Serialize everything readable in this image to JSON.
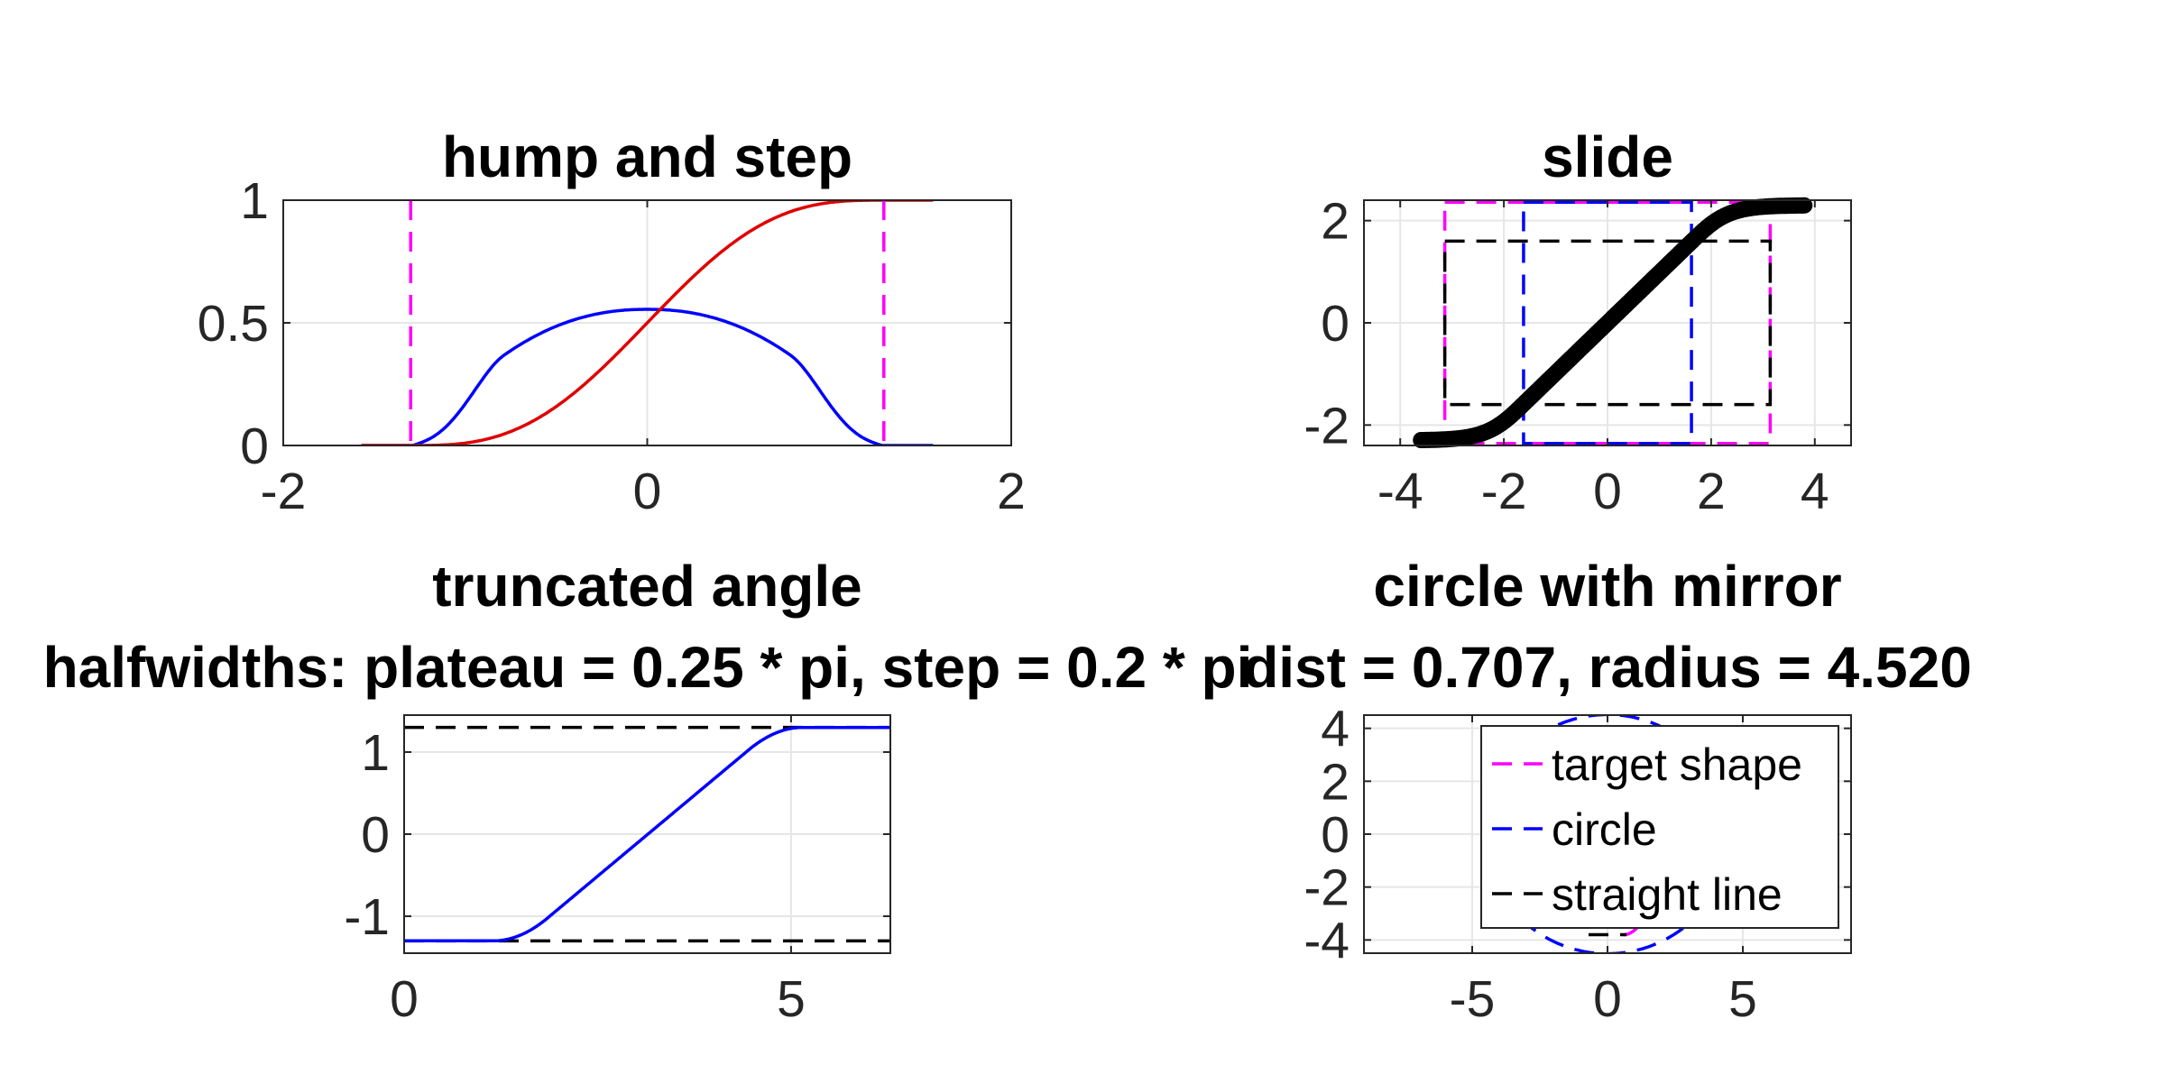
{
  "colors": {
    "magenta": "#ff00ff",
    "blue": "#0000ff",
    "red": "#e00000",
    "black": "#000000",
    "grid": "#e6e6e6",
    "axis": "#262626"
  },
  "chart_data": [
    {
      "id": "hump",
      "type": "line",
      "title": "hump and step",
      "subtitle": "",
      "xlabel": "",
      "ylabel": "",
      "xlim": [
        -2,
        2
      ],
      "ylim": [
        0,
        1
      ],
      "xticks": [
        -2,
        0,
        2
      ],
      "xtick_labels": [
        "-2",
        "0",
        "2"
      ],
      "yticks": [
        0,
        0.5,
        1
      ],
      "ytick_labels": [
        "0",
        "0.5",
        "1"
      ],
      "grid": true,
      "series": [
        {
          "kind": "hump",
          "color": "blue",
          "dash": false,
          "params": {
            "plateau_halfwidth": 0.785,
            "step_halfwidth": 0.628,
            "height": 0.555,
            "x_range": [
              -1.571,
              1.571
            ]
          }
        },
        {
          "kind": "step",
          "color": "red",
          "dash": false,
          "params": {
            "plateau_halfwidth": 0.785,
            "step_halfwidth": 0.628,
            "x_range": [
              -1.571,
              1.571
            ]
          }
        },
        {
          "kind": "vline",
          "color": "magenta",
          "dash": true,
          "x": -1.3
        },
        {
          "kind": "vline",
          "color": "magenta",
          "dash": true,
          "x": 1.3
        }
      ]
    },
    {
      "id": "slide",
      "type": "line",
      "title": "slide",
      "subtitle": "",
      "xlabel": "",
      "ylabel": "",
      "xlim": [
        -4.7,
        4.7
      ],
      "ylim": [
        -2.4,
        2.4
      ],
      "xticks": [
        -4,
        -2,
        0,
        2,
        4
      ],
      "xtick_labels": [
        "-4",
        "-2",
        "0",
        "2",
        "4"
      ],
      "yticks": [
        -2,
        0,
        2
      ],
      "ytick_labels": [
        "-2",
        "0",
        "2"
      ],
      "grid": true,
      "series": [
        {
          "kind": "slide",
          "color": "black",
          "dash": false,
          "thick": true,
          "params": {
            "x_range": [
              -3.6,
              3.8
            ],
            "level": 2.3,
            "plateau_halfwidth": 1.571,
            "step_halfwidth": 1.256
          }
        },
        {
          "kind": "slide",
          "color": "red",
          "dash": false,
          "params": {
            "x_range": [
              -3.0,
              3.0
            ],
            "level": 2.3,
            "plateau_halfwidth": 1.571,
            "step_halfwidth": 1.256
          }
        },
        {
          "kind": "rect",
          "color": "magenta",
          "dash": true,
          "x": [
            -3.14,
            3.14
          ],
          "y": [
            -2.36,
            2.36
          ]
        },
        {
          "kind": "rect",
          "color": "blue",
          "dash": true,
          "x": [
            -1.62,
            1.62
          ],
          "y": [
            -2.36,
            2.36
          ]
        },
        {
          "kind": "rect",
          "color": "black",
          "dash": true,
          "x": [
            -3.14,
            3.14
          ],
          "y": [
            -1.6,
            1.6
          ]
        }
      ]
    },
    {
      "id": "angle",
      "type": "line",
      "title": "truncated angle",
      "subtitle": "halfwidths: plateau = 0.25 * pi, step = 0.2 * pi",
      "xlabel": "",
      "ylabel": "",
      "xlim": [
        0,
        6.283
      ],
      "ylim": [
        -1.45,
        1.45
      ],
      "xticks": [
        0,
        5
      ],
      "xtick_labels": [
        "0",
        "5"
      ],
      "yticks": [
        -1,
        0,
        1
      ],
      "ytick_labels": [
        "-1",
        "0",
        "1"
      ],
      "grid": true,
      "series": [
        {
          "kind": "hline",
          "color": "black",
          "dash": true,
          "y": 1.3
        },
        {
          "kind": "hline",
          "color": "black",
          "dash": true,
          "y": -1.3
        },
        {
          "kind": "angle",
          "color": "blue",
          "dash": false,
          "params": {
            "low": -1.3,
            "high": 1.3,
            "x0": 1.5,
            "x1": 4.8,
            "round": 0.35
          }
        }
      ]
    },
    {
      "id": "circle",
      "type": "line",
      "title": "circle with mirror",
      "subtitle": "dist = 0.707, radius =  4.520",
      "xlabel": "",
      "ylabel": "",
      "xlim": [
        -9,
        9
      ],
      "ylim": [
        -4.5,
        4.5
      ],
      "xticks": [
        -5,
        0,
        5
      ],
      "xtick_labels": [
        "-5",
        "0",
        "5"
      ],
      "yticks": [
        -4,
        -2,
        0,
        2,
        4
      ],
      "ytick_labels": [
        "-4",
        "-2",
        "0",
        "2",
        "4"
      ],
      "grid": true,
      "series": [
        {
          "kind": "circle",
          "color": "blue",
          "dash": true,
          "cx": 0,
          "cy": 0,
          "r": 4.52
        },
        {
          "kind": "mirror",
          "color": "magenta",
          "dash": true
        },
        {
          "kind": "hline",
          "color": "black",
          "dash": true,
          "y": -3.8,
          "x_range": [
            -0.7,
            0.7
          ]
        }
      ],
      "legend": {
        "placement": "top-right",
        "entries": [
          {
            "label": "target shape",
            "color": "magenta"
          },
          {
            "label": "circle",
            "color": "blue"
          },
          {
            "label": "straight line",
            "color": "black"
          }
        ]
      }
    }
  ]
}
